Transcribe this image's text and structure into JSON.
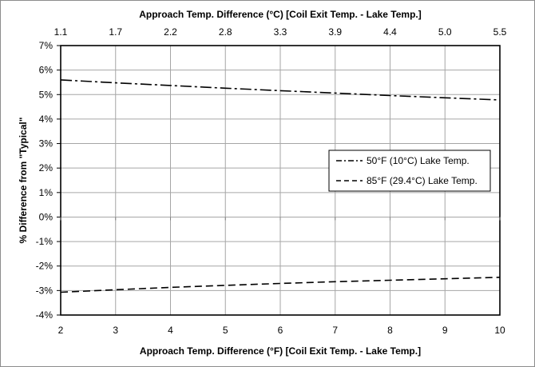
{
  "chart_data": {
    "type": "line",
    "title": "",
    "xlabel": "Approach Temp. Difference (°F) [Coil Exit Temp. - Lake Temp.]",
    "x2label": "Approach Temp. Difference (°C) [Coil Exit Temp. - Lake Temp.]",
    "ylabel": "% Difference from \"Typical\"",
    "xlim": [
      2,
      10
    ],
    "ylim": [
      -4,
      7
    ],
    "x_ticks": [
      2,
      3,
      4,
      5,
      6,
      7,
      8,
      9,
      10
    ],
    "x_tick_labels": [
      "2",
      "3",
      "4",
      "5",
      "6",
      "7",
      "8",
      "9",
      "10"
    ],
    "x2_tick_labels": [
      "1.1",
      "1.7",
      "2.2",
      "2.8",
      "3.3",
      "3.9",
      "4.4",
      "5.0",
      "5.5"
    ],
    "y_ticks": [
      -4,
      -3,
      -2,
      -1,
      0,
      1,
      2,
      3,
      4,
      5,
      6,
      7
    ],
    "y_tick_labels": [
      "-4%",
      "-3%",
      "-2%",
      "-1%",
      "0%",
      "1%",
      "2%",
      "3%",
      "4%",
      "5%",
      "6%",
      "7%"
    ],
    "grid": true,
    "legend_position": "right",
    "series": [
      {
        "name": "50°F (10°C) Lake Temp.",
        "dash": "dash-dot",
        "color": "#000000",
        "x": [
          2,
          3,
          4,
          5,
          6,
          7,
          8,
          9,
          10
        ],
        "y": [
          5.6,
          5.48,
          5.37,
          5.26,
          5.16,
          5.06,
          4.96,
          4.87,
          4.78
        ]
      },
      {
        "name": "85°F (29.4°C) Lake Temp.",
        "dash": "dash",
        "color": "#000000",
        "x": [
          2,
          3,
          4,
          5,
          6,
          7,
          8,
          9,
          10
        ],
        "y": [
          -3.07,
          -2.97,
          -2.87,
          -2.79,
          -2.71,
          -2.64,
          -2.58,
          -2.52,
          -2.46
        ]
      }
    ]
  }
}
